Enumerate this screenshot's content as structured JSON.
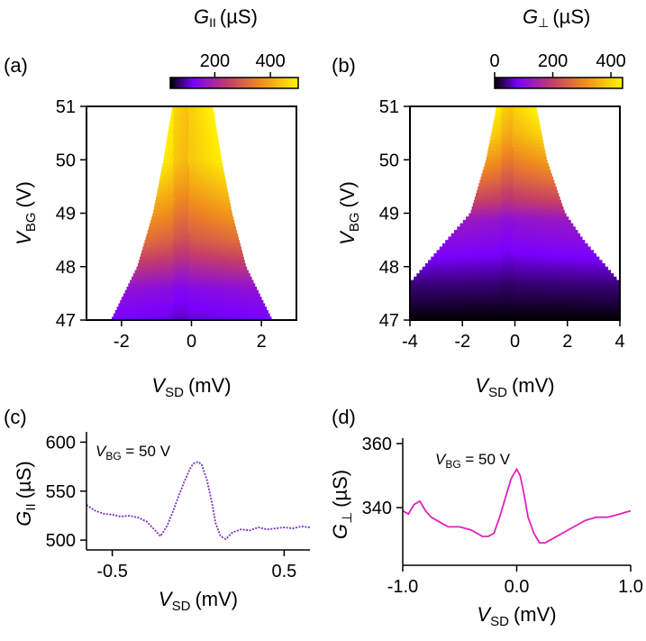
{
  "chart_data": [
    {
      "panel": "(a)",
      "type": "heatmap",
      "xlabel": {
        "main": "V",
        "sub": "SD",
        "unit": "(mV)"
      },
      "ylabel": {
        "main": "V",
        "sub": "BG",
        "unit": "(V)"
      },
      "xlim": [
        -3,
        3
      ],
      "ylim": [
        47,
        51
      ],
      "xticks": [
        "-2",
        "0",
        "2"
      ],
      "xtick_values": [
        -2,
        0,
        2
      ],
      "yticks": [
        "47",
        "48",
        "49",
        "50",
        "51"
      ],
      "ytick_values": [
        47,
        48,
        49,
        50,
        51
      ],
      "colorbar": {
        "label": {
          "main": "G",
          "sub": "II",
          "unit": "(µS)"
        },
        "range": [
          40,
          500
        ],
        "ticks": [
          "200",
          "400"
        ],
        "tick_values": [
          200,
          400
        ]
      },
      "boundary": [
        {
          "y": 47.0,
          "xmin": -2.3,
          "xmax": 2.3
        },
        {
          "y": 48.0,
          "xmin": -1.55,
          "xmax": 1.55
        },
        {
          "y": 49.0,
          "xmin": -1.1,
          "xmax": 1.15
        },
        {
          "y": 50.0,
          "xmin": -0.8,
          "xmax": 0.85
        },
        {
          "y": 51.0,
          "xmin": -0.55,
          "xmax": 0.6
        }
      ],
      "conductance_profile": [
        {
          "y": 47.0,
          "value": 120
        },
        {
          "y": 47.6,
          "value": 160
        },
        {
          "y": 48.0,
          "value": 230
        },
        {
          "y": 48.5,
          "value": 320
        },
        {
          "y": 49.0,
          "value": 380
        },
        {
          "y": 49.5,
          "value": 440
        },
        {
          "y": 50.0,
          "value": 490
        },
        {
          "y": 51.0,
          "value": 500
        }
      ]
    },
    {
      "panel": "(b)",
      "type": "heatmap",
      "xlabel": {
        "main": "V",
        "sub": "SD",
        "unit": "(mV)"
      },
      "ylabel": {
        "main": "V",
        "sub": "BG",
        "unit": "(V)"
      },
      "xlim": [
        -4,
        4
      ],
      "ylim": [
        47,
        51
      ],
      "xticks": [
        "-4",
        "-2",
        "0",
        "2",
        "4"
      ],
      "xtick_values": [
        -4,
        -2,
        0,
        2,
        4
      ],
      "yticks": [
        "47",
        "48",
        "49",
        "50",
        "51"
      ],
      "ytick_values": [
        47,
        48,
        49,
        50,
        51
      ],
      "colorbar": {
        "label": {
          "main": "G",
          "sub": "⊥",
          "unit": "(µS)"
        },
        "range": [
          0,
          440
        ],
        "ticks": [
          "0",
          "200",
          "400"
        ],
        "tick_values": [
          0,
          200,
          400
        ]
      },
      "boundary": [
        {
          "y": 47.0,
          "xmin": -4.0,
          "xmax": 4.0
        },
        {
          "y": 47.7,
          "xmin": -4.0,
          "xmax": 4.0
        },
        {
          "y": 48.5,
          "xmin": -2.6,
          "xmax": 2.6
        },
        {
          "y": 49.0,
          "xmin": -1.7,
          "xmax": 1.9
        },
        {
          "y": 50.0,
          "xmin": -1.1,
          "xmax": 1.2
        },
        {
          "y": 51.0,
          "xmin": -0.7,
          "xmax": 0.8
        }
      ],
      "conductance_profile": [
        {
          "y": 47.0,
          "value": 0
        },
        {
          "y": 47.7,
          "value": 40
        },
        {
          "y": 48.3,
          "value": 90
        },
        {
          "y": 48.9,
          "value": 130
        },
        {
          "y": 49.2,
          "value": 200
        },
        {
          "y": 49.6,
          "value": 270
        },
        {
          "y": 50.0,
          "value": 330
        },
        {
          "y": 50.5,
          "value": 400
        },
        {
          "y": 51.0,
          "value": 440
        }
      ]
    },
    {
      "panel": "(c)",
      "type": "line",
      "xlabel": {
        "main": "V",
        "sub": "SD",
        "unit": "(mV)"
      },
      "ylabel": {
        "main": "G",
        "sub": "II",
        "unit": "(µS)"
      },
      "annotation": {
        "main": "V",
        "sub": "BG",
        "text": " = 50 V"
      },
      "xlim": [
        -0.65,
        0.65
      ],
      "ylim": [
        490,
        605
      ],
      "xticks": [
        "-0.5",
        "0.5"
      ],
      "xtick_values": [
        -0.5,
        0.5
      ],
      "yticks": [
        "500",
        "550",
        "600"
      ],
      "ytick_values": [
        500,
        550,
        600
      ],
      "color": "#7b2fc0",
      "x": [
        -0.65,
        -0.6,
        -0.55,
        -0.5,
        -0.45,
        -0.4,
        -0.35,
        -0.3,
        -0.25,
        -0.22,
        -0.18,
        -0.15,
        -0.12,
        -0.08,
        -0.05,
        -0.03,
        0.0,
        0.02,
        0.05,
        0.08,
        0.1,
        0.13,
        0.16,
        0.2,
        0.25,
        0.3,
        0.35,
        0.4,
        0.45,
        0.5,
        0.55,
        0.6,
        0.65
      ],
      "y": [
        536,
        530,
        527,
        526,
        524,
        525,
        523,
        519,
        510,
        504,
        515,
        528,
        542,
        560,
        572,
        578,
        580,
        577,
        562,
        538,
        518,
        504,
        501,
        508,
        511,
        510,
        513,
        511,
        512,
        513,
        512,
        514,
        513
      ]
    },
    {
      "panel": "(d)",
      "type": "line",
      "xlabel": {
        "main": "V",
        "sub": "SD",
        "unit": "(mV)"
      },
      "ylabel": {
        "main": "G",
        "sub": "⊥",
        "unit": "(µS)"
      },
      "annotation": {
        "main": "V",
        "sub": "BG",
        "text": " = 50 V"
      },
      "xlim": [
        -1.0,
        1.0
      ],
      "ylim": [
        322,
        360
      ],
      "xticks": [
        "-1.0",
        "0.0",
        "1.0"
      ],
      "xtick_values": [
        -1.0,
        0.0,
        1.0
      ],
      "yticks": [
        "340",
        "360"
      ],
      "ytick_values": [
        340,
        360
      ],
      "color": "#e020c0",
      "x": [
        -1.0,
        -0.95,
        -0.9,
        -0.85,
        -0.8,
        -0.75,
        -0.7,
        -0.6,
        -0.5,
        -0.4,
        -0.3,
        -0.25,
        -0.2,
        -0.15,
        -0.1,
        -0.05,
        0.0,
        0.03,
        0.06,
        0.1,
        0.15,
        0.2,
        0.25,
        0.3,
        0.4,
        0.5,
        0.6,
        0.7,
        0.8,
        0.9,
        1.0
      ],
      "y": [
        339,
        338,
        341,
        342,
        339,
        337,
        336,
        334,
        334,
        333,
        331,
        331,
        332,
        337,
        343,
        349,
        352,
        350,
        345,
        337,
        332,
        329,
        329,
        330,
        332,
        334,
        336,
        337,
        337,
        338,
        339
      ]
    }
  ]
}
